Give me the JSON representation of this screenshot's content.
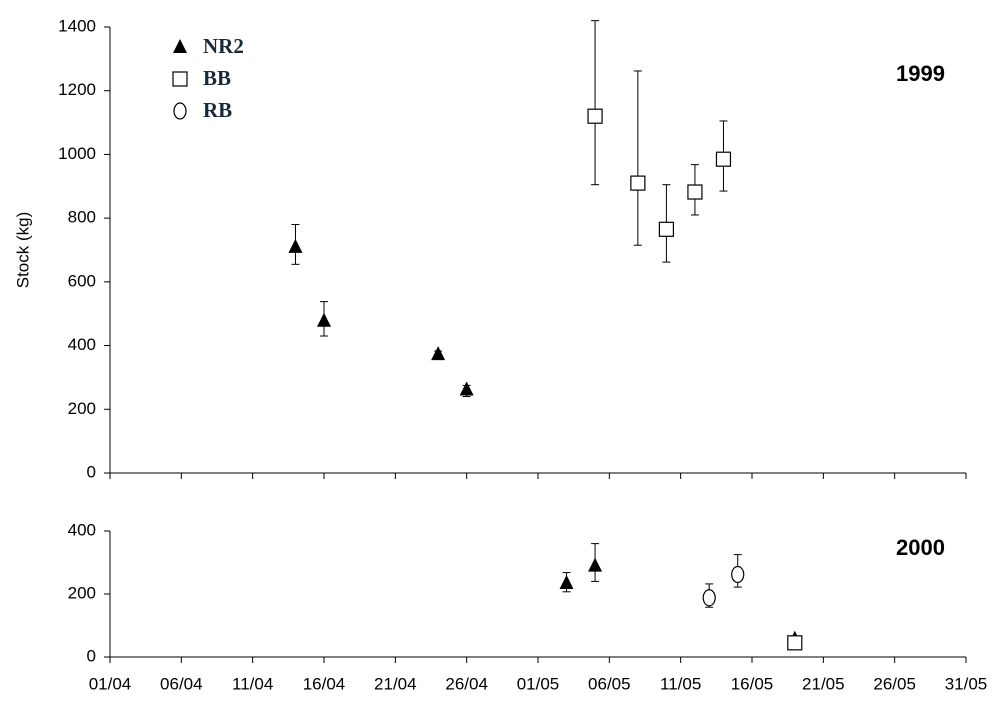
{
  "chart_data": [
    {
      "type": "scatter",
      "ylabel": "Stock (kg)",
      "annotation": "1999",
      "ylim": [
        0,
        1400
      ],
      "yticks": [
        0,
        200,
        400,
        600,
        800,
        1000,
        1200,
        1400
      ],
      "series": [
        {
          "name": "NR2",
          "color": "#000000",
          "marker": "triangle",
          "x": [
            "14/04",
            "16/04",
            "24/04",
            "26/04"
          ],
          "values": [
            710,
            478,
            373,
            262
          ],
          "upper": [
            780,
            538,
            383,
            275
          ],
          "lower": [
            655,
            430,
            365,
            240
          ]
        },
        {
          "name": "BB",
          "color": "#000000",
          "marker": "square",
          "x": [
            "05/05",
            "08/05",
            "10/05",
            "12/05",
            "14/05"
          ],
          "values": [
            1120,
            910,
            765,
            882,
            985
          ],
          "upper": [
            1420,
            1262,
            905,
            968,
            1105
          ],
          "lower": [
            905,
            715,
            662,
            810,
            885
          ]
        },
        {
          "name": "RB",
          "color": "#000000",
          "marker": "circle",
          "x": [],
          "values": [],
          "upper": [],
          "lower": []
        }
      ]
    },
    {
      "type": "scatter",
      "annotation": "2000",
      "xlim": [
        "01/04",
        "31/05"
      ],
      "xticks": [
        "01/04",
        "06/04",
        "11/04",
        "16/04",
        "21/04",
        "26/04",
        "01/05",
        "06/05",
        "11/05",
        "16/05",
        "21/05",
        "26/05",
        "31/05"
      ],
      "ylim": [
        0,
        400
      ],
      "yticks": [
        0,
        200,
        400
      ],
      "series": [
        {
          "color": "#000000",
          "marker": "triangle",
          "x": [
            "03/05",
            "05/05",
            "19/05"
          ],
          "values": [
            235,
            290,
            58
          ],
          "upper": [
            268,
            360,
            58
          ],
          "lower": [
            207,
            240,
            58
          ]
        },
        {
          "color": "#000000",
          "marker": "square",
          "x": [
            "19/05"
          ],
          "values": [
            45
          ],
          "upper": [
            45
          ],
          "lower": [
            45
          ]
        },
        {
          "color": "#000000",
          "marker": "circle",
          "x": [
            "13/05",
            "15/05"
          ],
          "values": [
            188,
            262
          ],
          "upper": [
            232,
            325
          ],
          "lower": [
            158,
            222
          ]
        }
      ]
    }
  ]
}
